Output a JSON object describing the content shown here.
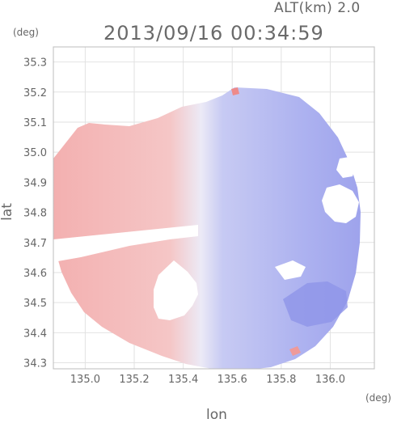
{
  "header": {
    "altitude_label": "ALT(km) 2.0",
    "timestamp": "2013/09/16 00:34:59"
  },
  "units": {
    "left": "(deg)",
    "right": "(deg)"
  },
  "chart_data": {
    "type": "heatmap",
    "xlabel": "lon",
    "ylabel": "lat",
    "x_ticks": [
      "135.0",
      "135.2",
      "135.4",
      "135.6",
      "135.8",
      "136.0"
    ],
    "y_ticks": [
      "35.3",
      "35.2",
      "35.1",
      "35.0",
      "34.9",
      "34.8",
      "34.7",
      "34.6",
      "34.5",
      "34.4",
      "34.3"
    ],
    "xlim": [
      134.87,
      136.18
    ],
    "ylim": [
      34.28,
      35.35
    ],
    "colors": {
      "toward": "#f4b4b4",
      "away": "#a9aef0",
      "strong_away": "#8a8fe6",
      "frame": "#bdbdbd",
      "grid": "#e2e2e2"
    }
  }
}
